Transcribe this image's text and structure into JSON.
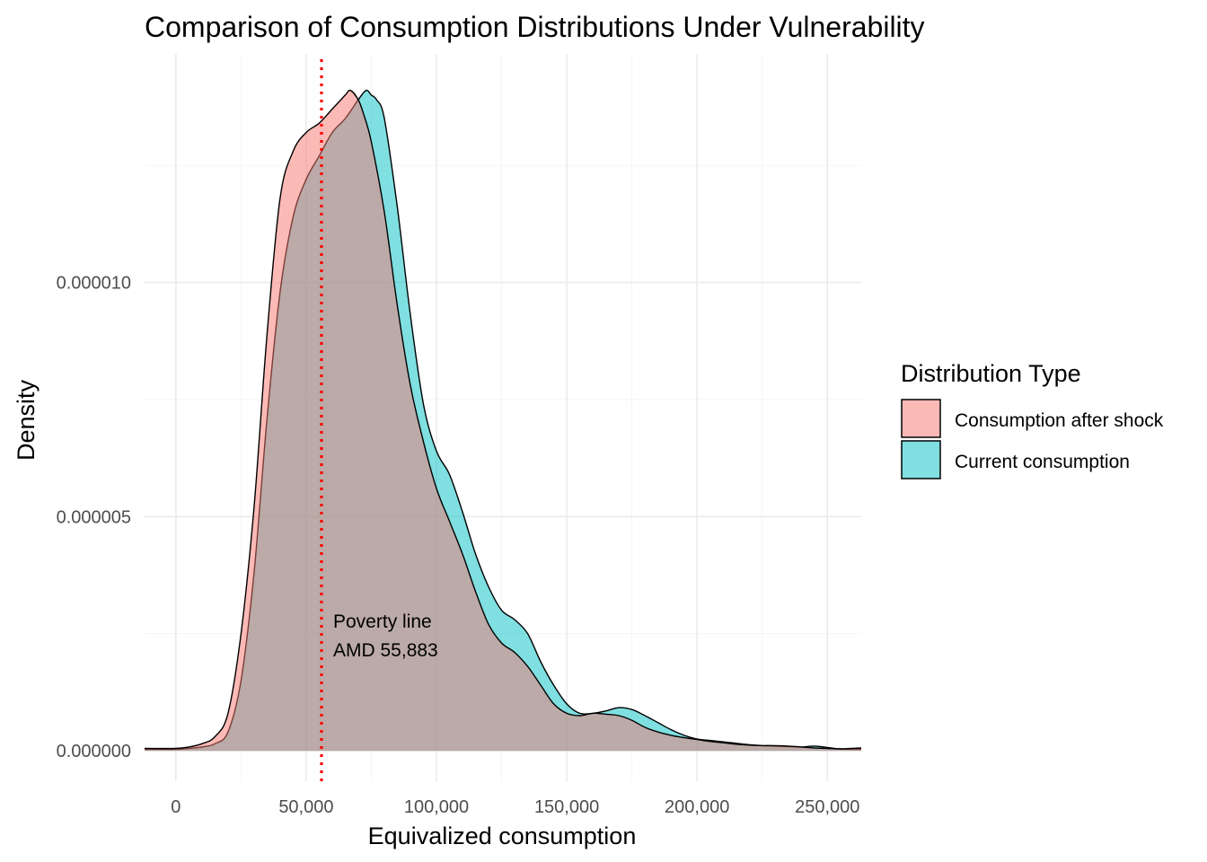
{
  "chart_data": {
    "type": "area",
    "title": "Comparison of Consumption Distributions Under Vulnerability",
    "xlabel": "Equivalized consumption",
    "ylabel": "Density",
    "xlim": [
      -12000,
      263000
    ],
    "ylim": [
      -6.5e-07,
      1.488e-05
    ],
    "x_ticks": [
      0,
      50000,
      100000,
      150000,
      200000,
      250000
    ],
    "x_tick_labels": [
      "0",
      "50,000",
      "100,000",
      "150,000",
      "200,000",
      "250,000"
    ],
    "y_ticks": [
      0,
      5e-06,
      1e-05
    ],
    "y_tick_labels": [
      "0.000000",
      "0.000005",
      "0.000010"
    ],
    "grid": true,
    "legend": {
      "title": "Distribution Type",
      "position": "right"
    },
    "series": [
      {
        "name": "Consumption after shock",
        "color": "#F8766D",
        "x": [
          -12000,
          0,
          5000,
          10000,
          15000,
          20000,
          25000,
          30000,
          35000,
          40000,
          45000,
          50000,
          55000,
          60000,
          65000,
          67000,
          70000,
          72000,
          75000,
          80000,
          85000,
          90000,
          95000,
          100000,
          105000,
          110000,
          115000,
          120000,
          125000,
          130000,
          135000,
          140000,
          145000,
          150000,
          155000,
          160000,
          165000,
          170000,
          175000,
          180000,
          185000,
          190000,
          195000,
          200000,
          205000,
          210000,
          215000,
          220000,
          225000,
          230000,
          235000,
          240000,
          245000,
          250000,
          255000,
          263000
        ],
        "y": [
          5e-08,
          5e-08,
          8e-08,
          1.5e-07,
          3e-07,
          8e-07,
          2.5e-06,
          5.2e-06,
          8.9e-06,
          1.18e-05,
          1.28e-05,
          1.32e-05,
          1.34e-05,
          1.37e-05,
          1.4e-05,
          1.41e-05,
          1.39e-05,
          1.36e-05,
          1.3e-05,
          1.15e-05,
          9.5e-06,
          7.8e-06,
          6.6e-06,
          5.6e-06,
          4.9e-06,
          4.2e-06,
          3.4e-06,
          2.7e-06,
          2.3e-06,
          2.1e-06,
          1.8e-06,
          1.4e-06,
          1e-06,
          8e-07,
          7.5e-07,
          8e-07,
          7.8e-07,
          7.5e-07,
          6.5e-07,
          5e-07,
          4e-07,
          3.3e-07,
          2.8e-07,
          2.4e-07,
          2e-07,
          1.7e-07,
          1.4e-07,
          1.2e-07,
          1.1e-07,
          1.1e-07,
          1e-07,
          8e-08,
          6e-08,
          5e-08,
          4e-08,
          6e-08
        ]
      },
      {
        "name": "Current consumption",
        "color": "#00BFC4",
        "x": [
          -12000,
          0,
          5000,
          10000,
          15000,
          20000,
          25000,
          30000,
          35000,
          40000,
          45000,
          50000,
          55000,
          60000,
          65000,
          70000,
          73000,
          75000,
          77000,
          80000,
          85000,
          90000,
          95000,
          100000,
          105000,
          110000,
          115000,
          120000,
          125000,
          130000,
          135000,
          140000,
          145000,
          150000,
          155000,
          160000,
          165000,
          170000,
          175000,
          180000,
          185000,
          190000,
          195000,
          200000,
          205000,
          210000,
          215000,
          220000,
          225000,
          230000,
          235000,
          240000,
          245000,
          250000,
          255000,
          263000
        ],
        "y": [
          3e-08,
          3e-08,
          5e-08,
          8e-08,
          1.5e-07,
          4e-07,
          1.5e-06,
          3.8e-06,
          7.1e-06,
          9.8e-06,
          1.14e-05,
          1.22e-05,
          1.27e-05,
          1.32e-05,
          1.35e-05,
          1.39e-05,
          1.41e-05,
          1.4e-05,
          1.39e-05,
          1.35e-05,
          1.16e-05,
          9.3e-06,
          7.4e-06,
          6.4e-06,
          5.9e-06,
          5.1e-06,
          4.2e-06,
          3.5e-06,
          3e-06,
          2.8e-06,
          2.5e-06,
          1.9e-06,
          1.4e-06,
          1e-06,
          8e-07,
          8e-07,
          8.5e-07,
          9.2e-07,
          8.8e-07,
          7.5e-07,
          6e-07,
          4.5e-07,
          3.3e-07,
          2.5e-07,
          2.2e-07,
          1.9e-07,
          1.6e-07,
          1.3e-07,
          1.1e-07,
          1e-07,
          9e-08,
          8e-08,
          1e-07,
          7e-08,
          4e-08,
          3e-08
        ]
      }
    ],
    "vline": {
      "x": 55883,
      "color": "#FF0000",
      "style": "dotted",
      "label_line1": "Poverty line",
      "label_line2": "AMD 55,883"
    }
  }
}
